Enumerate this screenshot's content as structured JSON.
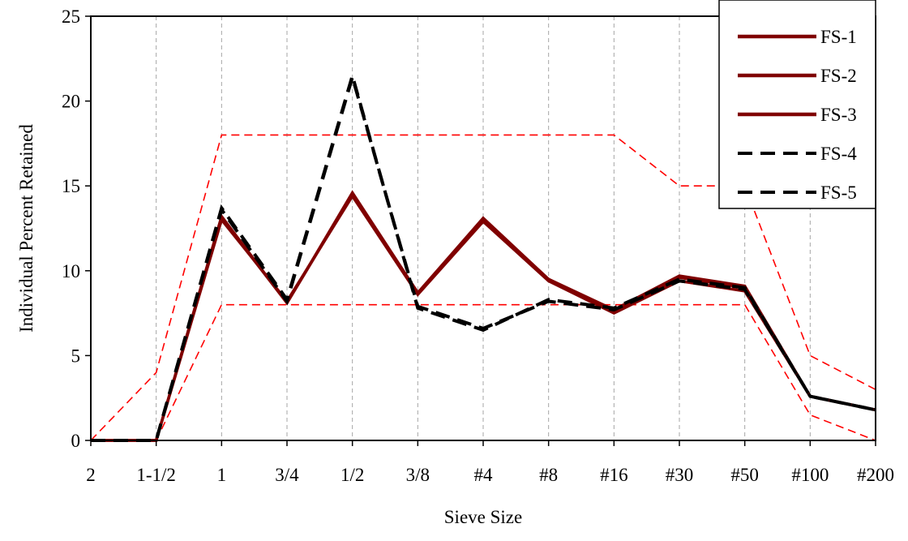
{
  "chart_data": {
    "type": "line",
    "title": "",
    "xlabel": "Sieve Size",
    "ylabel": "Individual Percent Retained",
    "categories": [
      "2",
      "1-1/2",
      "1",
      "3/4",
      "1/2",
      "3/8",
      "#4",
      "#8",
      "#16",
      "#30",
      "#50",
      "#100",
      "#200"
    ],
    "ylim": [
      0,
      25
    ],
    "yticks": [
      0,
      5,
      10,
      15,
      20,
      25
    ],
    "grid": "vertical dashed",
    "legend_position": "top-right",
    "series": [
      {
        "name": "FS-1",
        "color": "#800000",
        "style": "solid",
        "values": [
          0,
          0,
          13.2,
          8.1,
          14.6,
          8.7,
          13.1,
          9.5,
          7.7,
          9.7,
          9.1,
          2.6,
          1.8
        ]
      },
      {
        "name": "FS-2",
        "color": "#800000",
        "style": "solid",
        "values": [
          0,
          0,
          13.0,
          8.2,
          14.4,
          8.6,
          12.9,
          9.4,
          7.5,
          9.4,
          8.8,
          2.6,
          1.8
        ]
      },
      {
        "name": "FS-3",
        "color": "#800000",
        "style": "solid",
        "values": [
          0,
          0,
          13.1,
          8.1,
          14.5,
          8.7,
          13.0,
          9.5,
          7.6,
          9.6,
          9.0,
          2.6,
          1.8
        ]
      },
      {
        "name": "FS-4",
        "color": "#000000",
        "style": "dashed",
        "values": [
          0,
          0,
          13.7,
          8.3,
          21.5,
          7.8,
          6.5,
          8.3,
          7.8,
          9.5,
          9.0,
          2.6,
          1.8
        ]
      },
      {
        "name": "FS-5",
        "color": "#000000",
        "style": "dashed",
        "values": [
          0,
          0,
          13.6,
          8.2,
          21.4,
          7.9,
          6.6,
          8.2,
          7.7,
          9.4,
          8.9,
          2.6,
          1.8
        ]
      }
    ],
    "limit_lines": [
      {
        "color": "#ff0000",
        "style": "dashed",
        "values": [
          0,
          4,
          18,
          18,
          18,
          18,
          18,
          18,
          18,
          15,
          15,
          5,
          3
        ]
      },
      {
        "color": "#ff0000",
        "style": "dashed",
        "values": [
          0,
          0,
          8,
          8,
          8,
          8,
          8,
          8,
          8,
          8,
          8,
          1.5,
          0
        ]
      }
    ]
  }
}
